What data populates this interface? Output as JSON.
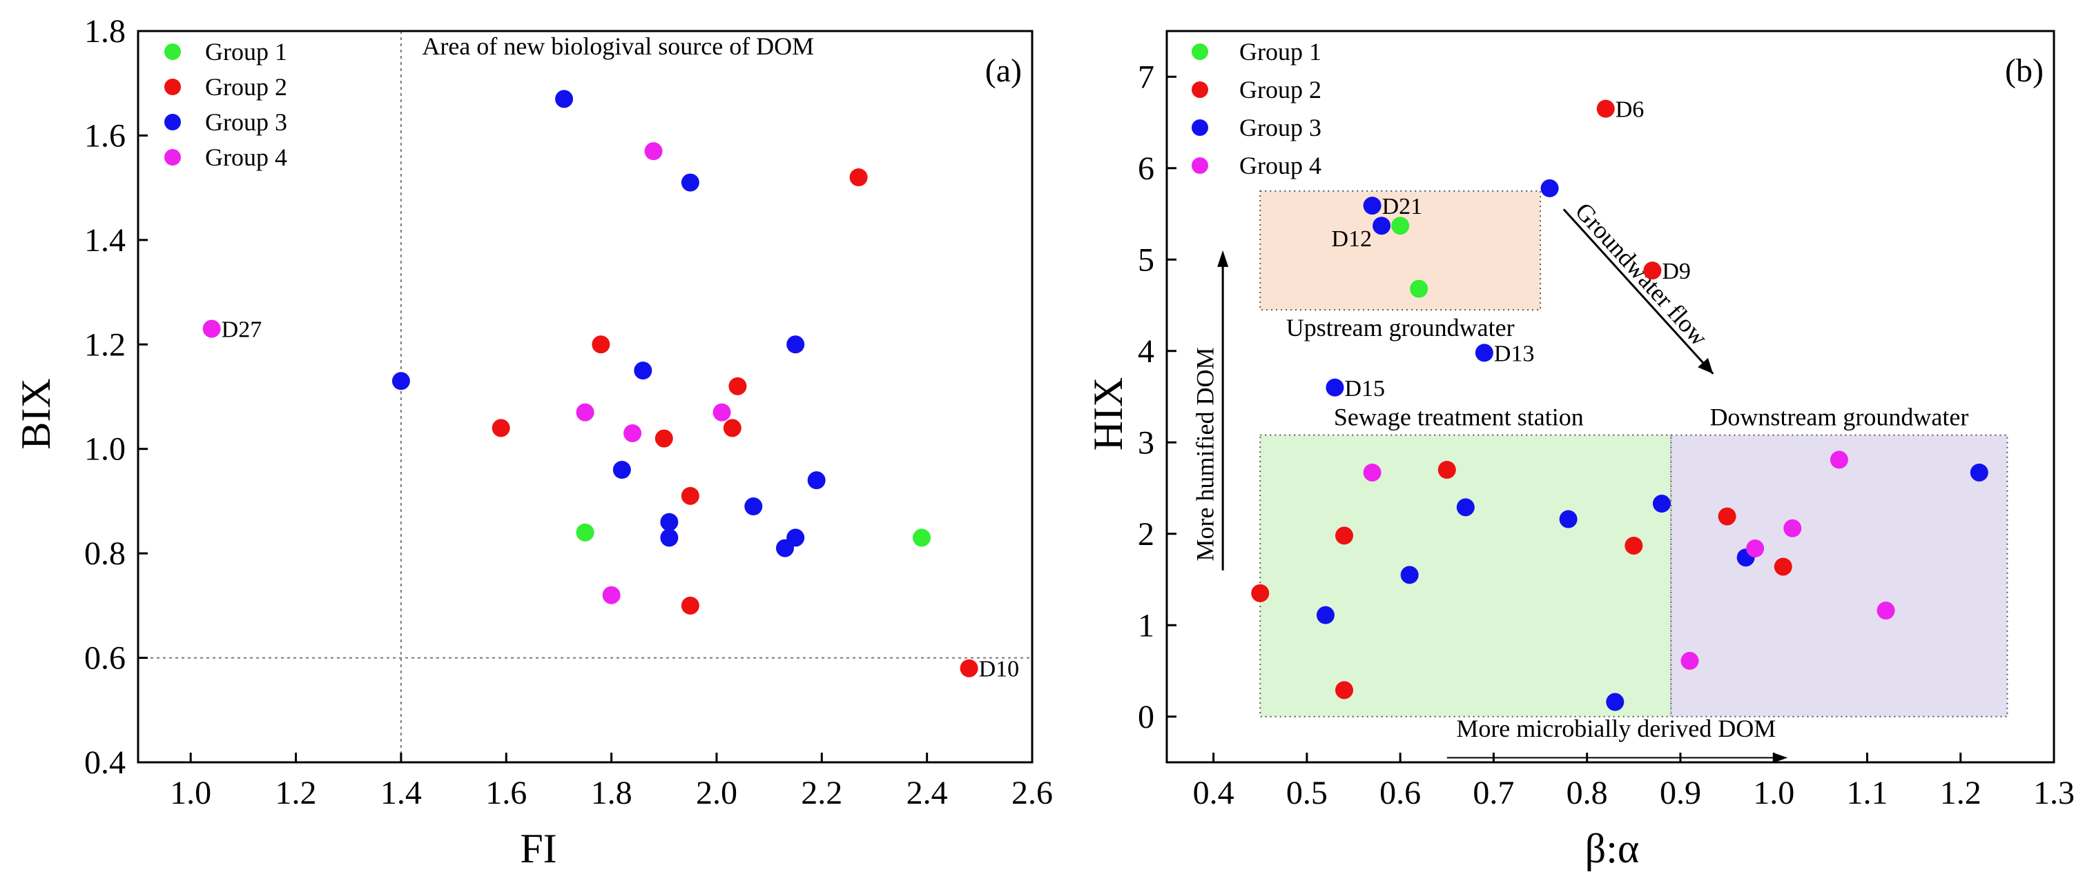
{
  "chart_data": [
    {
      "type": "scatter",
      "panel_label": "(a)",
      "xlabel": "FI",
      "ylabel": "BIX",
      "xlim": [
        0.9,
        2.6
      ],
      "ylim": [
        0.4,
        1.8
      ],
      "xticks": [
        "1.0",
        "1.2",
        "1.4",
        "1.6",
        "1.8",
        "2.0",
        "2.2",
        "2.4",
        "2.6"
      ],
      "yticks": [
        "0.4",
        "0.6",
        "0.8",
        "1.0",
        "1.2",
        "1.4",
        "1.6",
        "1.8"
      ],
      "grid": false,
      "legend_position": "top-left",
      "reference_lines": [
        {
          "orientation": "vertical",
          "value": 1.4,
          "style": "dotted"
        },
        {
          "orientation": "horizontal",
          "value": 0.6,
          "style": "dotted"
        }
      ],
      "annotations": [
        {
          "text": "Area of new biologival source of DOM",
          "x": 1.44,
          "y": 1.755
        }
      ],
      "series": [
        {
          "name": "Group 1",
          "color": "#33ee33",
          "points": [
            {
              "x": 1.75,
              "y": 0.84
            },
            {
              "x": 2.39,
              "y": 0.83
            }
          ]
        },
        {
          "name": "Group 2",
          "color": "#ee1111",
          "points": [
            {
              "x": 2.27,
              "y": 1.52
            },
            {
              "x": 1.78,
              "y": 1.2
            },
            {
              "x": 2.04,
              "y": 1.12
            },
            {
              "x": 1.59,
              "y": 1.04
            },
            {
              "x": 2.03,
              "y": 1.04
            },
            {
              "x": 1.9,
              "y": 1.02
            },
            {
              "x": 1.95,
              "y": 0.91
            },
            {
              "x": 1.95,
              "y": 0.7
            },
            {
              "x": 2.48,
              "y": 0.58,
              "label": "D10"
            }
          ]
        },
        {
          "name": "Group 3",
          "color": "#1111ee",
          "points": [
            {
              "x": 1.71,
              "y": 1.67
            },
            {
              "x": 1.95,
              "y": 1.51
            },
            {
              "x": 2.15,
              "y": 1.2
            },
            {
              "x": 1.86,
              "y": 1.15
            },
            {
              "x": 1.4,
              "y": 1.13
            },
            {
              "x": 1.82,
              "y": 0.96
            },
            {
              "x": 2.19,
              "y": 0.94
            },
            {
              "x": 2.07,
              "y": 0.89
            },
            {
              "x": 1.91,
              "y": 0.86
            },
            {
              "x": 1.91,
              "y": 0.83
            },
            {
              "x": 2.15,
              "y": 0.83
            },
            {
              "x": 2.13,
              "y": 0.81
            }
          ]
        },
        {
          "name": "Group 4",
          "color": "#ee22ee",
          "points": [
            {
              "x": 1.88,
              "y": 1.57
            },
            {
              "x": 1.04,
              "y": 1.23,
              "label": "D27"
            },
            {
              "x": 1.75,
              "y": 1.07
            },
            {
              "x": 2.01,
              "y": 1.07
            },
            {
              "x": 1.84,
              "y": 1.03
            },
            {
              "x": 1.8,
              "y": 0.72
            }
          ]
        }
      ]
    },
    {
      "type": "scatter",
      "panel_label": "(b)",
      "xlabel": "β:α",
      "ylabel": "HIX",
      "xlim": [
        0.35,
        1.3
      ],
      "ylim": [
        -0.5,
        7.5
      ],
      "xticks": [
        "0.4",
        "0.5",
        "0.6",
        "0.7",
        "0.8",
        "0.9",
        "1.0",
        "1.1",
        "1.2",
        "1.3"
      ],
      "yticks": [
        "0",
        "1",
        "2",
        "3",
        "4",
        "5",
        "6",
        "7"
      ],
      "grid": false,
      "legend_position": "top-left",
      "regions": [
        {
          "label": "Upstream groundwater",
          "x": [
            0.45,
            0.75
          ],
          "y": [
            4.45,
            5.75
          ],
          "fill": "#fbe3d4"
        },
        {
          "label": "Sewage treatment station",
          "x": [
            0.45,
            0.89
          ],
          "y": [
            0.0,
            3.08
          ],
          "fill": "#dcf5d5"
        },
        {
          "label": "Downstream groundwater",
          "x": [
            0.89,
            1.25
          ],
          "y": [
            0.0,
            3.08
          ],
          "fill": "#e4dff0"
        }
      ],
      "annotations": [
        {
          "text": "Groundwater flow",
          "x": 0.785,
          "y": 5.45
        },
        {
          "text": "More humified DOM",
          "x": 0.39,
          "y": 1.65
        },
        {
          "text": "More microbially derived DOM",
          "x": 0.66,
          "y": -0.22
        }
      ],
      "series": [
        {
          "name": "Group 1",
          "color": "#33ee33",
          "points": [
            {
              "x": 0.6,
              "y": 5.37
            },
            {
              "x": 0.62,
              "y": 4.68
            }
          ]
        },
        {
          "name": "Group 2",
          "color": "#ee1111",
          "points": [
            {
              "x": 0.82,
              "y": 6.65,
              "label": "D6"
            },
            {
              "x": 0.87,
              "y": 4.88,
              "label": "D9"
            },
            {
              "x": 0.65,
              "y": 2.7
            },
            {
              "x": 0.95,
              "y": 2.19
            },
            {
              "x": 0.54,
              "y": 1.98
            },
            {
              "x": 0.85,
              "y": 1.87
            },
            {
              "x": 1.01,
              "y": 1.64
            },
            {
              "x": 0.45,
              "y": 1.35
            },
            {
              "x": 0.54,
              "y": 0.29
            }
          ]
        },
        {
          "name": "Group 3",
          "color": "#1111ee",
          "points": [
            {
              "x": 0.76,
              "y": 5.78
            },
            {
              "x": 0.57,
              "y": 5.59,
              "label": "D21"
            },
            {
              "x": 0.58,
              "y": 5.37,
              "label": "D12"
            },
            {
              "x": 0.69,
              "y": 3.98,
              "label": "D13"
            },
            {
              "x": 0.53,
              "y": 3.6,
              "label": "D15"
            },
            {
              "x": 1.22,
              "y": 2.67
            },
            {
              "x": 0.88,
              "y": 2.33
            },
            {
              "x": 0.67,
              "y": 2.29
            },
            {
              "x": 0.78,
              "y": 2.16
            },
            {
              "x": 0.97,
              "y": 1.74
            },
            {
              "x": 0.61,
              "y": 1.55
            },
            {
              "x": 0.52,
              "y": 1.11
            },
            {
              "x": 0.83,
              "y": 0.16
            }
          ]
        },
        {
          "name": "Group 4",
          "color": "#ee22ee",
          "points": [
            {
              "x": 1.07,
              "y": 2.81
            },
            {
              "x": 0.57,
              "y": 2.67
            },
            {
              "x": 1.02,
              "y": 2.06
            },
            {
              "x": 0.98,
              "y": 1.84
            },
            {
              "x": 1.12,
              "y": 1.16
            },
            {
              "x": 0.91,
              "y": 0.61
            }
          ]
        }
      ]
    }
  ]
}
